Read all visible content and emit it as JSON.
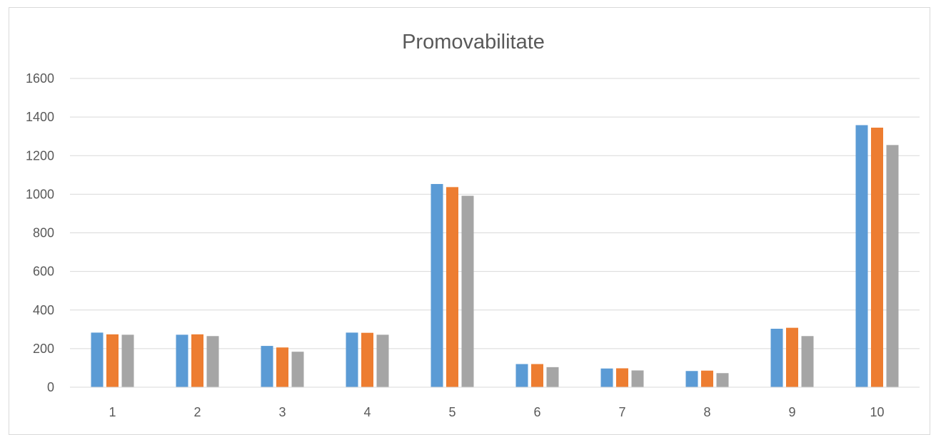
{
  "chart_data": {
    "type": "bar",
    "title": "Promovabilitate",
    "xlabel": "",
    "ylabel": "",
    "categories": [
      "1",
      "2",
      "3",
      "4",
      "5",
      "6",
      "7",
      "8",
      "9",
      "10"
    ],
    "ylim": [
      0,
      1600
    ],
    "yticks": [
      "0",
      "200",
      "400",
      "600",
      "800",
      "1000",
      "1200",
      "1400",
      "1600"
    ],
    "grid": true,
    "legend": "none",
    "series": [
      {
        "color": "#5b9bd5",
        "values": [
          283,
          272,
          214,
          283,
          1053,
          120,
          97,
          84,
          303,
          1358
        ]
      },
      {
        "color": "#ed7d31",
        "values": [
          274,
          274,
          206,
          282,
          1037,
          120,
          98,
          86,
          308,
          1345
        ]
      },
      {
        "color": "#a5a5a5",
        "values": [
          272,
          265,
          184,
          272,
          992,
          104,
          87,
          73,
          265,
          1255
        ]
      }
    ]
  }
}
